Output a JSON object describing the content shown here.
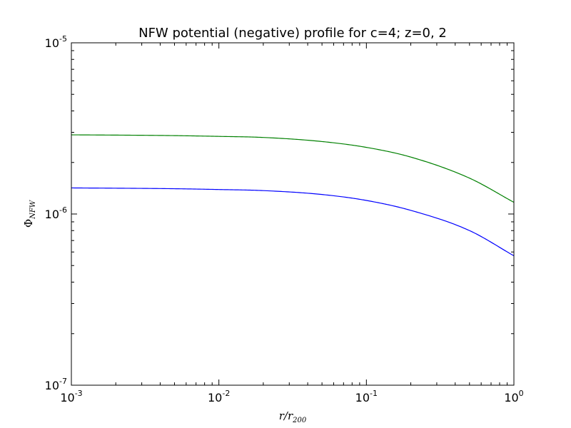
{
  "chart_data": {
    "type": "line",
    "title": "NFW potential (negative) profile for c=4; z=0, 2",
    "xlabel": {
      "main": "r/r",
      "sub": "200"
    },
    "ylabel": {
      "main": "Φ",
      "sub": "NFW"
    },
    "xscale": "log",
    "yscale": "log",
    "xlim": [
      0.001,
      1
    ],
    "ylim": [
      1e-07,
      1e-05
    ],
    "x_ticks": [
      {
        "value": 0.001,
        "base": "10",
        "exp": "-3"
      },
      {
        "value": 0.01,
        "base": "10",
        "exp": "-2"
      },
      {
        "value": 0.1,
        "base": "10",
        "exp": "-1"
      },
      {
        "value": 1,
        "base": "10",
        "exp": "0"
      }
    ],
    "y_ticks": [
      {
        "value": 1e-07,
        "base": "10",
        "exp": "-7"
      },
      {
        "value": 1e-06,
        "base": "10",
        "exp": "-6"
      },
      {
        "value": 1e-05,
        "base": "10",
        "exp": "-5"
      }
    ],
    "grid": false,
    "series": [
      {
        "color": "#0000ff",
        "x": [
          0.001,
          0.002,
          0.005,
          0.01,
          0.02,
          0.05,
          0.1,
          0.2,
          0.5,
          1.0
        ],
        "y": [
          1.42e-06,
          1.415e-06,
          1.405e-06,
          1.39e-06,
          1.37e-06,
          1.3e-06,
          1.2e-06,
          1.05e-06,
          8e-07,
          5.7e-07
        ]
      },
      {
        "color": "#008000",
        "x": [
          0.001,
          0.002,
          0.005,
          0.01,
          0.02,
          0.05,
          0.1,
          0.2,
          0.5,
          1.0
        ],
        "y": [
          2.9e-06,
          2.89e-06,
          2.87e-06,
          2.84e-06,
          2.8e-06,
          2.65e-06,
          2.45e-06,
          2.15e-06,
          1.62e-06,
          1.17e-06
        ]
      }
    ]
  }
}
